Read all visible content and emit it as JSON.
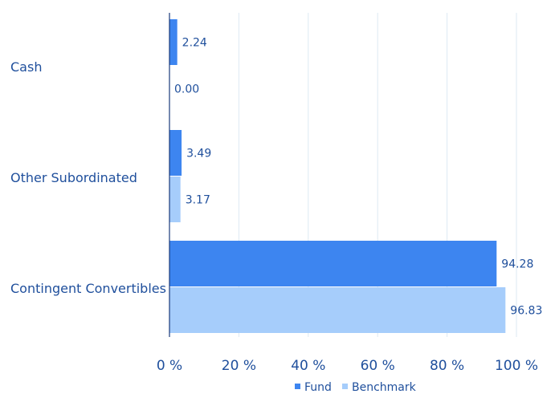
{
  "colors": {
    "fund": "#3d85f0",
    "benchmark": "#a6cdfb",
    "text": "#1f4f9c",
    "grid": "#dde9f3",
    "axis": "#1a3a7a"
  },
  "chart_data": {
    "type": "bar",
    "orientation": "horizontal",
    "categories": [
      "Cash",
      "Other Subordinated",
      "Contingent Convertibles"
    ],
    "series": [
      {
        "name": "Fund",
        "values": [
          2.24,
          3.49,
          94.28
        ],
        "labels": [
          "2.24",
          "3.49",
          "94.28"
        ]
      },
      {
        "name": "Benchmark",
        "values": [
          0.0,
          3.17,
          96.83
        ],
        "labels": [
          "0.00",
          "3.17",
          "96.83"
        ]
      }
    ],
    "xlim": [
      0,
      100
    ],
    "xticks": [
      0,
      20,
      40,
      60,
      80,
      100
    ],
    "xtick_labels": [
      "0 %",
      "20 %",
      "40 %",
      "60 %",
      "80 %",
      "100 %"
    ],
    "grid": true,
    "legend_position": "bottom-right",
    "title": "",
    "xlabel": "",
    "ylabel": ""
  }
}
